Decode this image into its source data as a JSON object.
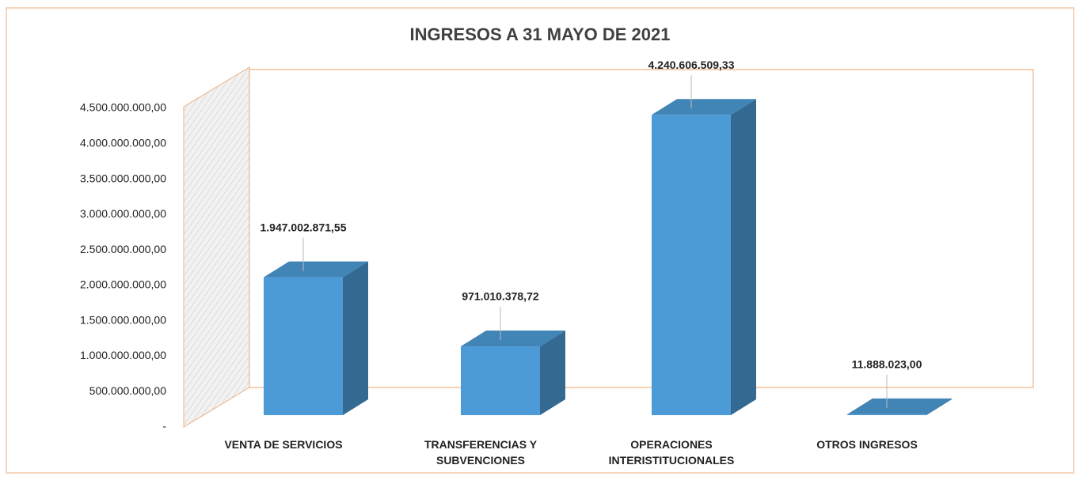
{
  "chart_data": {
    "type": "bar3d",
    "title": "INGRESOS A 31 MAYO DE 2021",
    "categories": [
      "VENTA DE SERVICIOS",
      "TRANSFERENCIAS Y SUBVENCIONES",
      "OPERACIONES INTERISTITUCIONALES",
      "OTROS INGRESOS"
    ],
    "values": [
      1947002871.55,
      971010378.72,
      4240606509.33,
      11888023.0
    ],
    "value_labels": [
      "1.947.002.871,55",
      "971.010.378,72",
      "4.240.606.509,33",
      "11.888.023,00"
    ],
    "color": "#4d9bd6",
    "ylim": [
      0,
      4500000000
    ],
    "yticks": [
      {
        "value": 0,
        "label": "-"
      },
      {
        "value": 500000000,
        "label": "500.000.000,00"
      },
      {
        "value": 1000000000,
        "label": "1.000.000.000,00"
      },
      {
        "value": 1500000000,
        "label": "1.500.000.000,00"
      },
      {
        "value": 2000000000,
        "label": "2.000.000.000,00"
      },
      {
        "value": 2500000000,
        "label": "2.500.000.000,00"
      },
      {
        "value": 3000000000,
        "label": "3.000.000.000,00"
      },
      {
        "value": 3500000000,
        "label": "3.500.000.000,00"
      },
      {
        "value": 4000000000,
        "label": "4.000.000.000,00"
      },
      {
        "value": 4500000000,
        "label": "4.500.000.000,00"
      }
    ]
  }
}
